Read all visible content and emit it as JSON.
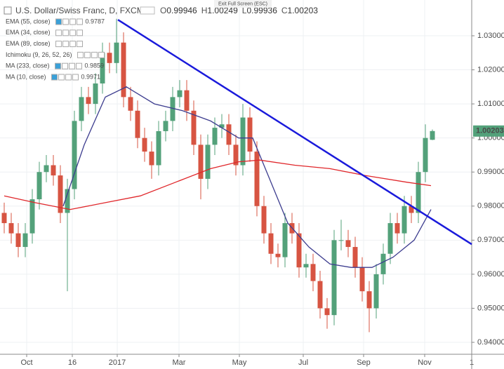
{
  "chart_data": {
    "type": "candlestick",
    "title": "U.S. Dollar/Swiss Franc, D, FXCM",
    "ohlc_letters": [
      "O",
      "H",
      "L",
      "C"
    ],
    "exit_fullscreen": "Exit Full Screen (ESC)",
    "up_color": "#53a17a",
    "down_color": "#d75442",
    "grid": true,
    "xlim": [
      0,
      336
    ],
    "ylim": [
      0.9365,
      1.0405
    ],
    "xticks": [
      {
        "value": 19,
        "label": "Oct"
      },
      {
        "value": 51.5,
        "label": "16"
      },
      {
        "value": 83.5,
        "label": "2017"
      },
      {
        "value": 127.5,
        "label": "Mar"
      },
      {
        "value": 170.5,
        "label": "May"
      },
      {
        "value": 216,
        "label": "Jul"
      },
      {
        "value": 259,
        "label": "Sep"
      },
      {
        "value": 302.5,
        "label": "Nov"
      },
      {
        "value": 336,
        "label": "1"
      }
    ],
    "yticks": [
      {
        "value": 0.94,
        "label": "0.94000"
      },
      {
        "value": 0.95,
        "label": "0.95000"
      },
      {
        "value": 0.96,
        "label": "0.96000"
      },
      {
        "value": 0.97,
        "label": "0.97000"
      },
      {
        "value": 0.98,
        "label": "0.98000"
      },
      {
        "value": 0.99,
        "label": "0.99000"
      },
      {
        "value": 1.0,
        "label": "1.00000"
      },
      {
        "value": 1.01,
        "label": "1.01000"
      },
      {
        "value": 1.02,
        "label": "1.02000"
      },
      {
        "value": 1.03,
        "label": "1.03000"
      }
    ],
    "candles": {
      "x": [
        3,
        8,
        13,
        18,
        23,
        28,
        33,
        38,
        43,
        48,
        53,
        58,
        63,
        68,
        73,
        78,
        83,
        88,
        93,
        98,
        103,
        108,
        113,
        118,
        123,
        128,
        133,
        138,
        143,
        148,
        153,
        158,
        163,
        168,
        173,
        178,
        183,
        188,
        193,
        198,
        203,
        208,
        213,
        218,
        223,
        228,
        233,
        238,
        243,
        248,
        253,
        258,
        263,
        268,
        273,
        278,
        283,
        288,
        293,
        298,
        303,
        308
      ],
      "open": [
        0.978,
        0.975,
        0.972,
        0.968,
        0.972,
        0.982,
        0.99,
        0.992,
        0.989,
        0.978,
        0.985,
        1.005,
        1.012,
        1.01,
        1.016,
        1.025,
        1.022,
        1.028,
        1.012,
        1.008,
        1.0,
        0.996,
        0.992,
        1.002,
        1.005,
        1.012,
        1.014,
        1.008,
        0.998,
        0.988,
        0.998,
        1.003,
        1.004,
        0.998,
        0.992,
        1.006,
        0.996,
        0.98,
        0.972,
        0.966,
        0.965,
        0.975,
        0.972,
        0.962,
        0.963,
        0.958,
        0.95,
        0.948,
        0.97,
        0.97,
        0.968,
        0.962,
        0.955,
        0.95,
        0.96,
        0.966,
        0.975,
        0.972,
        0.98,
        0.978,
        0.99,
        0.99946
      ],
      "high": [
        0.981,
        0.978,
        0.975,
        0.975,
        0.985,
        0.993,
        0.995,
        0.995,
        0.992,
        0.988,
        1.008,
        1.015,
        1.015,
        1.019,
        1.028,
        1.028,
        1.035,
        1.031,
        1.015,
        1.011,
        1.003,
        0.999,
        1.005,
        1.008,
        1.015,
        1.017,
        1.017,
        1.011,
        1.001,
        1.001,
        1.006,
        1.007,
        1.007,
        1.001,
        1.01,
        1.009,
        0.999,
        0.983,
        0.975,
        0.969,
        0.978,
        0.978,
        0.975,
        0.966,
        0.966,
        0.961,
        0.953,
        0.973,
        0.976,
        0.973,
        0.971,
        0.965,
        0.958,
        0.963,
        0.969,
        0.978,
        0.978,
        0.983,
        0.983,
        0.993,
        1.004,
        1.00249
      ],
      "low": [
        0.972,
        0.969,
        0.965,
        0.965,
        0.969,
        0.979,
        0.987,
        0.986,
        0.975,
        0.955,
        0.982,
        1.002,
        1.007,
        1.007,
        1.013,
        1.019,
        1.019,
        1.009,
        1.005,
        0.997,
        0.993,
        0.988,
        0.989,
        0.999,
        1.002,
        1.009,
        1.005,
        0.995,
        0.982,
        0.985,
        0.995,
        1.0,
        0.995,
        0.989,
        0.989,
        0.993,
        0.977,
        0.969,
        0.963,
        0.962,
        0.962,
        0.969,
        0.959,
        0.959,
        0.955,
        0.947,
        0.944,
        0.945,
        0.967,
        0.965,
        0.959,
        0.952,
        0.943,
        0.947,
        0.957,
        0.963,
        0.969,
        0.969,
        0.975,
        0.975,
        0.987,
        0.99936
      ],
      "close": [
        0.975,
        0.972,
        0.968,
        0.972,
        0.982,
        0.99,
        0.992,
        0.989,
        0.978,
        0.985,
        1.005,
        1.012,
        1.01,
        1.016,
        1.025,
        1.022,
        1.028,
        1.012,
        1.008,
        1.0,
        0.996,
        0.992,
        1.002,
        1.005,
        1.012,
        1.014,
        1.008,
        0.998,
        0.988,
        0.998,
        1.003,
        1.004,
        0.998,
        0.992,
        1.006,
        0.996,
        0.98,
        0.972,
        0.966,
        0.965,
        0.975,
        0.972,
        0.962,
        0.963,
        0.958,
        0.95,
        0.948,
        0.97,
        0.97,
        0.968,
        0.962,
        0.955,
        0.95,
        0.96,
        0.966,
        0.975,
        0.972,
        0.98,
        0.978,
        0.99,
        1.0,
        1.00203
      ]
    },
    "indicators": [
      {
        "name": "EMA (55, close)",
        "color": "#3d3d8f",
        "value": 0.9787,
        "x": [
          45,
          60,
          75,
          90,
          110,
          130,
          150,
          170,
          180,
          190,
          205,
          220,
          235,
          250,
          265,
          280,
          295,
          307
        ],
        "values": [
          0.98,
          0.998,
          1.012,
          1.015,
          1.01,
          1.008,
          1.005,
          1.0,
          1.0,
          0.99,
          0.975,
          0.968,
          0.963,
          0.962,
          0.962,
          0.965,
          0.97,
          0.979
        ]
      },
      {
        "name": "EMA (34, close)",
        "color": "#b0b0b0"
      },
      {
        "name": "EMA (89, close)",
        "color": "#b0b0b0"
      },
      {
        "name": "Ichimoku (9, 26, 52, 26)",
        "color": "#b0b0b0"
      },
      {
        "name": "MA (233, close)",
        "color": "#e0272b",
        "value": 0.9859,
        "x": [
          3,
          25,
          50,
          75,
          100,
          125,
          150,
          170,
          185,
          210,
          235,
          260,
          290,
          307
        ],
        "values": [
          0.983,
          0.981,
          0.979,
          0.981,
          0.983,
          0.987,
          0.991,
          0.993,
          0.9935,
          0.992,
          0.991,
          0.989,
          0.987,
          0.986
        ]
      },
      {
        "name": "MA (10, close)",
        "color": "#2020d0",
        "value": 0.9971
      }
    ],
    "trendline": {
      "color": "#1a1adb",
      "x": [
        84,
        336
      ],
      "values": [
        1.0347,
        0.9688
      ]
    }
  }
}
